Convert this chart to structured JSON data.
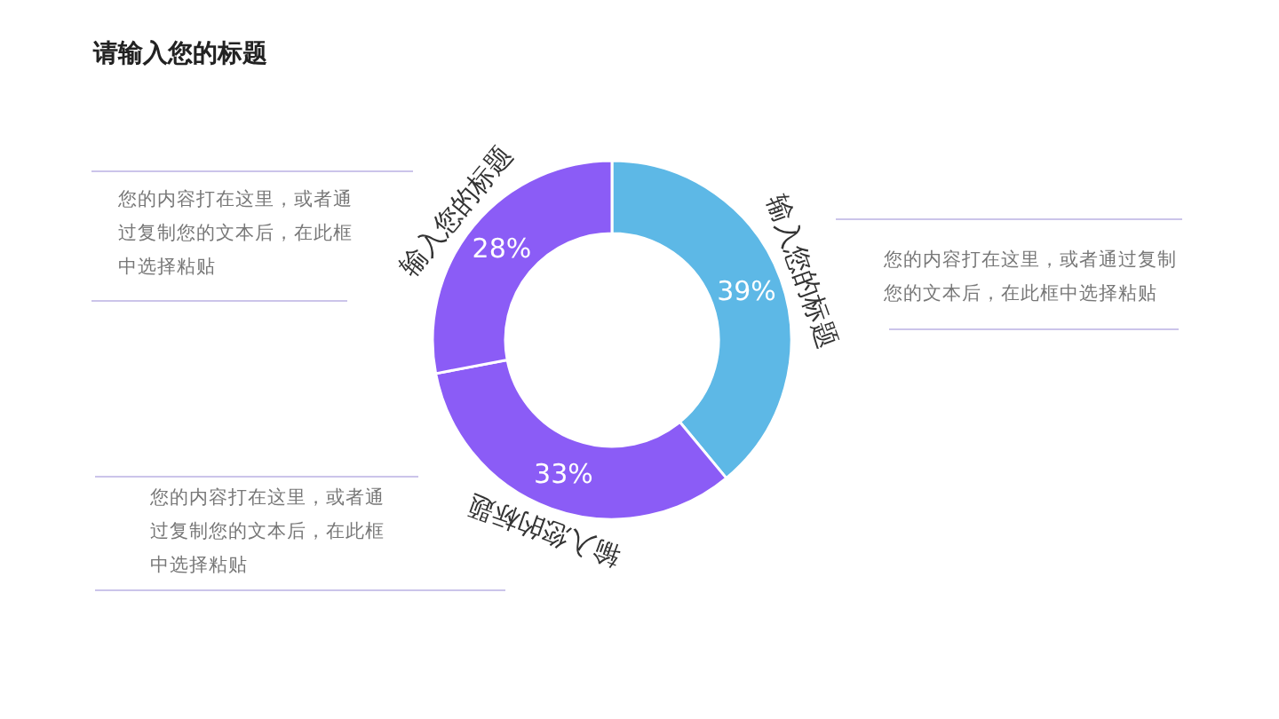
{
  "chart_data": {
    "type": "donut",
    "title": "请输入您的标题",
    "categories": [
      "输入您的标题",
      "输入您的标题",
      "输入您的标题"
    ],
    "values": [
      39,
      33,
      28
    ],
    "colors": [
      "#5db8e6",
      "#8b5cf6",
      "#8b5cf6"
    ],
    "value_labels": [
      "39%",
      "33%",
      "28%"
    ],
    "annotations": [
      "您的内容打在这里，或者通过复制您的文本后，在此框中选择粘贴",
      "您的内容打在这里，或者通过复制您的文本后，在此框中选择粘贴",
      "您的内容打在这里，或者通过复制您的文本后，在此框中选择粘贴"
    ]
  }
}
